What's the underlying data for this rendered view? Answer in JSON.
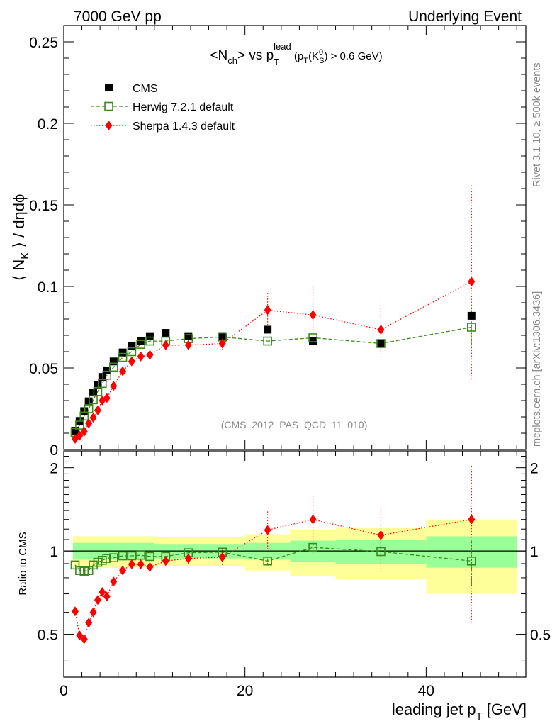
{
  "header": {
    "left": "7000 GeV pp",
    "right": "Underlying Event"
  },
  "side": {
    "rivet": "Rivet 3.1.10, ≥ 500k events",
    "mcplots": "mcplots.cern.ch [arXiv:1306.3436]"
  },
  "colors": {
    "cms": "#000000",
    "herwig": "#3a8a1e",
    "sherpa": "#ff0000",
    "band_inner": "#99ff99",
    "band_outer": "#ffff99"
  },
  "chart_data": [
    {
      "type": "scatter",
      "panel": "main",
      "title": "<Nch> vs pT lead (pT(K0S) > 0.6 GeV)",
      "title_parts": {
        "a": "<N",
        "a_sub": "ch",
        "b": "> vs p",
        "b_sub": "T",
        "b_sup": "lead",
        "c": " (p",
        "c_sub": "T",
        "d": "(K",
        "d_sup": "0",
        "d_sub": "S",
        "e": ") > 0.6 GeV)"
      },
      "ylabel_parts": {
        "a": "⟨ N",
        "a_sub": "K",
        "b": " ⟩ / dηdϕ"
      },
      "xlim": [
        0,
        51
      ],
      "ylim": [
        0,
        0.26
      ],
      "yticks": [
        0,
        0.05,
        0.1,
        0.15,
        0.2,
        0.25
      ],
      "ytick_labels": [
        "0",
        "0.05",
        "0.1",
        "0.15",
        "0.2",
        "0.25"
      ],
      "reference_label": "(CMS_2012_PAS_QCD_11_010)",
      "legend": {
        "position": "top-left",
        "entries": [
          "CMS",
          "Herwig 7.2.1 default",
          "Sherpa 1.4.3 default"
        ]
      },
      "series": [
        {
          "name": "CMS",
          "marker": "filled-square",
          "x": [
            1.25,
            1.75,
            2.25,
            2.75,
            3.25,
            3.75,
            4.25,
            4.75,
            5.5,
            6.5,
            7.5,
            8.5,
            9.5,
            11.25,
            13.75,
            17.5,
            22.5,
            27.5,
            35,
            45
          ],
          "y": [
            0.0115,
            0.0175,
            0.0235,
            0.0295,
            0.035,
            0.0395,
            0.0445,
            0.0485,
            0.054,
            0.0595,
            0.0635,
            0.0665,
            0.0695,
            0.0715,
            0.0695,
            0.0695,
            0.0735,
            0.0665,
            0.065,
            0.082
          ]
        },
        {
          "name": "Herwig 7.2.1 default",
          "marker": "open-square",
          "x": [
            1.25,
            1.75,
            2.25,
            2.75,
            3.25,
            3.75,
            4.25,
            4.75,
            5.5,
            6.5,
            7.5,
            8.5,
            9.5,
            11.25,
            13.75,
            17.5,
            22.5,
            27.5,
            35,
            45
          ],
          "y": [
            0.0105,
            0.015,
            0.0205,
            0.025,
            0.0305,
            0.0355,
            0.0405,
            0.0455,
            0.0505,
            0.0565,
            0.06,
            0.0645,
            0.0665,
            0.0665,
            0.068,
            0.069,
            0.0665,
            0.0685,
            0.065,
            0.075
          ],
          "yerr": [
            0,
            0,
            0,
            0,
            0,
            0,
            0,
            0,
            0,
            0,
            0,
            0,
            0,
            0,
            0,
            0,
            0,
            0.003,
            0.003,
            0.013
          ]
        },
        {
          "name": "Sherpa 1.4.3 default",
          "marker": "filled-diamond",
          "x": [
            1.25,
            1.75,
            2.25,
            2.75,
            3.25,
            3.75,
            4.25,
            4.75,
            5.5,
            6.5,
            7.5,
            8.5,
            9.5,
            11.25,
            13.75,
            17.5,
            22.5,
            27.5,
            35,
            45
          ],
          "y": [
            0.0065,
            0.0085,
            0.011,
            0.016,
            0.0195,
            0.024,
            0.03,
            0.0315,
            0.039,
            0.048,
            0.054,
            0.057,
            0.058,
            0.064,
            0.064,
            0.065,
            0.0855,
            0.0825,
            0.0735,
            0.103
          ],
          "yerr": [
            0,
            0,
            0,
            0,
            0,
            0,
            0,
            0,
            0,
            0,
            0,
            0,
            0,
            0.002,
            0.003,
            0.004,
            0.011,
            0.018,
            0.017,
            0.06
          ]
        }
      ]
    },
    {
      "type": "scatter",
      "panel": "ratio",
      "ylabel": "Ratio to CMS",
      "xlabel_parts": {
        "a": "leading jet p",
        "a_sub": "T",
        "b": " [GeV]"
      },
      "xlim": [
        0,
        51
      ],
      "ylim": [
        0.35,
        2.3
      ],
      "xticks": [
        0,
        20,
        40
      ],
      "xtick_labels": [
        "0",
        "20",
        "40"
      ],
      "yticks": [
        0.5,
        1,
        2
      ],
      "ytick_labels": [
        "0.5",
        "1",
        "2"
      ],
      "bands": {
        "edges": [
          1,
          10,
          12.5,
          15,
          20,
          25,
          30,
          40,
          50
        ],
        "inner": [
          0.07,
          0.06,
          0.06,
          0.06,
          0.07,
          0.09,
          0.1,
          0.13
        ],
        "outer": [
          0.13,
          0.12,
          0.12,
          0.12,
          0.15,
          0.19,
          0.21,
          0.3
        ]
      },
      "series": [
        {
          "name": "Herwig 7.2.1 default",
          "x": [
            1.25,
            1.75,
            2.25,
            2.75,
            3.25,
            3.75,
            4.25,
            4.75,
            5.5,
            6.5,
            7.5,
            8.5,
            9.5,
            11.25,
            13.75,
            17.5,
            22.5,
            27.5,
            35,
            45
          ],
          "y": [
            0.89,
            0.85,
            0.845,
            0.85,
            0.89,
            0.91,
            0.925,
            0.94,
            0.945,
            0.96,
            0.96,
            0.965,
            0.955,
            0.955,
            0.985,
            0.99,
            0.92,
            1.03,
            0.995,
            0.92
          ],
          "yerr": [
            0,
            0,
            0,
            0,
            0,
            0,
            0,
            0,
            0,
            0,
            0,
            0,
            0,
            0,
            0,
            0,
            0.03,
            0.05,
            0.05,
            0.17
          ]
        },
        {
          "name": "Sherpa 1.4.3 default",
          "x": [
            1.25,
            1.75,
            2.25,
            2.75,
            3.25,
            3.75,
            4.25,
            4.75,
            5.5,
            6.5,
            7.5,
            8.5,
            9.5,
            11.25,
            13.75,
            17.5,
            22.5,
            27.5,
            35,
            45
          ],
          "y": [
            0.605,
            0.495,
            0.48,
            0.55,
            0.6,
            0.665,
            0.71,
            0.685,
            0.775,
            0.85,
            0.895,
            0.895,
            0.875,
            0.92,
            0.94,
            0.95,
            1.19,
            1.3,
            1.14,
            1.3
          ],
          "yerr": [
            0,
            0,
            0,
            0,
            0,
            0,
            0,
            0,
            0,
            0,
            0,
            0,
            0,
            0.03,
            0.04,
            0.06,
            0.2,
            0.3,
            0.3,
            0.75
          ]
        }
      ]
    }
  ]
}
